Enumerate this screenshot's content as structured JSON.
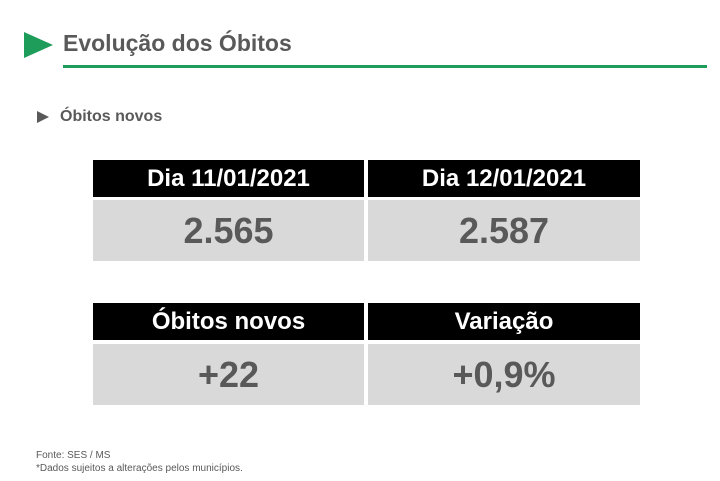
{
  "header": {
    "title": "Evolução dos Óbitos"
  },
  "section": {
    "title": "Óbitos novos"
  },
  "tables": [
    {
      "headers": [
        "Dia 11/01/2021",
        "Dia 12/01/2021"
      ],
      "values": [
        "2.565",
        "2.587"
      ]
    },
    {
      "headers": [
        "Óbitos novos",
        "Variação"
      ],
      "values": [
        "+22",
        "+0,9%"
      ]
    }
  ],
  "footer": {
    "source": "Fonte: SES / MS",
    "note": "*Dados sujeitos a alterações pelos municípios."
  }
}
